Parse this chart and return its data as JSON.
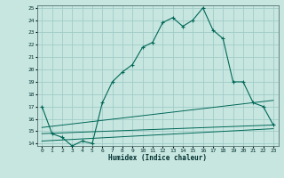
{
  "xlabel": "Humidex (Indice chaleur)",
  "background_color": "#c8e6e0",
  "grid_color": "#a0ccc8",
  "line_color": "#006858",
  "xlim": [
    -0.5,
    23.5
  ],
  "ylim": [
    13.8,
    25.2
  ],
  "yticks": [
    14,
    15,
    16,
    17,
    18,
    19,
    20,
    21,
    22,
    23,
    24,
    25
  ],
  "xticks": [
    0,
    1,
    2,
    3,
    4,
    5,
    6,
    7,
    8,
    9,
    10,
    11,
    12,
    13,
    14,
    15,
    16,
    17,
    18,
    19,
    20,
    21,
    22,
    23
  ],
  "line1_x": [
    0,
    1,
    2,
    3,
    4,
    5,
    6,
    7,
    8,
    9,
    10,
    11,
    12,
    13,
    14,
    15,
    16,
    17,
    18,
    19,
    20,
    21,
    22,
    23
  ],
  "line1_y": [
    17.0,
    14.8,
    14.5,
    13.8,
    14.2,
    14.0,
    17.3,
    19.0,
    19.8,
    20.4,
    21.8,
    22.2,
    23.8,
    24.2,
    23.5,
    24.0,
    25.0,
    23.2,
    22.5,
    19.0,
    19.0,
    17.3,
    17.0,
    15.5
  ],
  "line2_x": [
    0,
    23
  ],
  "line2_y": [
    14.8,
    15.5
  ],
  "line3_x": [
    0,
    23
  ],
  "line3_y": [
    15.3,
    17.5
  ],
  "line4_x": [
    0,
    23
  ],
  "line4_y": [
    14.2,
    15.2
  ]
}
